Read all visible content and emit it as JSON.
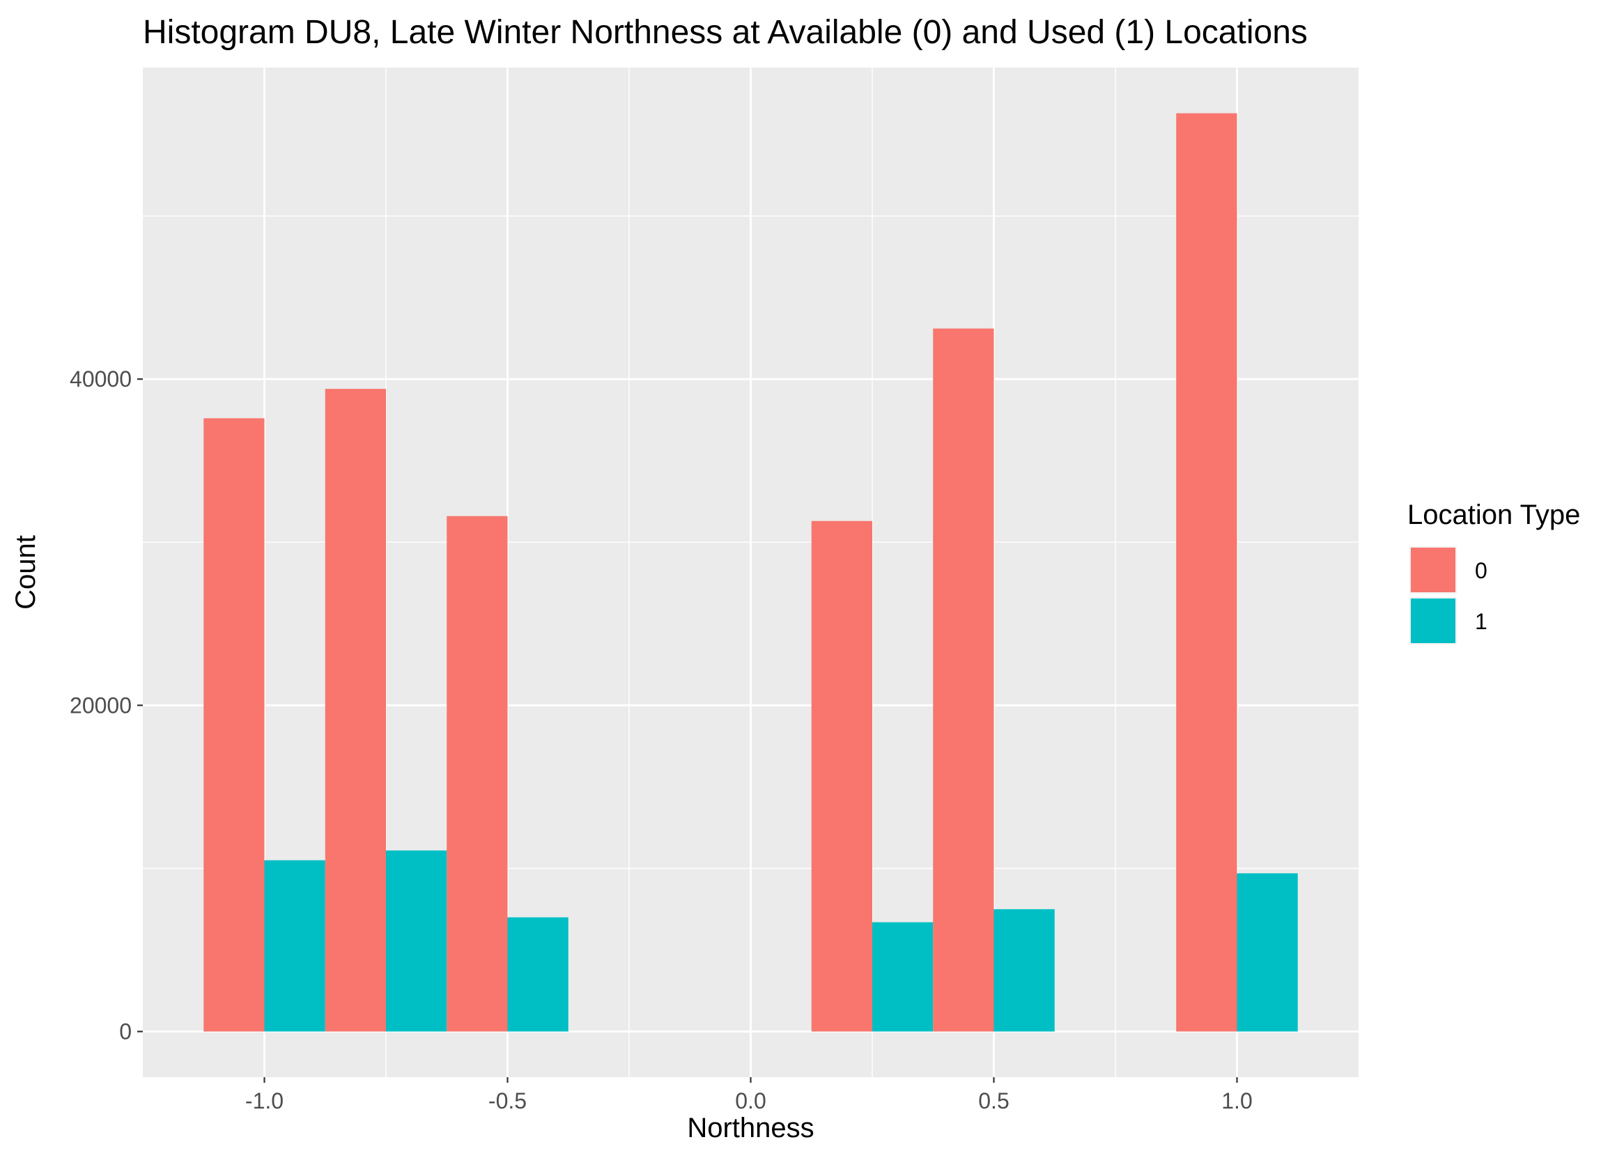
{
  "chart_data": {
    "type": "bar",
    "title": "Histogram DU8, Late Winter Northness at Available (0) and Used (1) Locations",
    "xlabel": "Northness",
    "ylabel": "Count",
    "x": [
      -1.0,
      -0.75,
      -0.5,
      0.25,
      0.5,
      1.0
    ],
    "series": [
      {
        "name": "0",
        "color": "#F8766D",
        "values": [
          37600,
          39400,
          31600,
          31300,
          43100,
          56300
        ]
      },
      {
        "name": "1",
        "color": "#00BFC4",
        "values": [
          10500,
          11100,
          7000,
          6700,
          7500,
          9700
        ]
      }
    ],
    "xlim": [
      -1.25,
      1.25
    ],
    "ylim": [
      -2800,
      59100
    ],
    "x_ticks": [
      {
        "value": -1.0,
        "label": "-1.0"
      },
      {
        "value": -0.5,
        "label": "-0.5"
      },
      {
        "value": 0.0,
        "label": "0.0"
      },
      {
        "value": 0.5,
        "label": "0.5"
      },
      {
        "value": 1.0,
        "label": "1.0"
      }
    ],
    "x_minor_ticks": [
      -0.75,
      -0.25,
      0.25,
      0.75
    ],
    "y_ticks": [
      {
        "value": 0,
        "label": "0"
      },
      {
        "value": 20000,
        "label": "20000"
      },
      {
        "value": 40000,
        "label": "40000"
      }
    ],
    "y_minor_ticks": [
      10000,
      30000,
      50000
    ],
    "grid": true,
    "panel_background": "#EBEBEB",
    "grid_color": "#FFFFFF",
    "legend": {
      "title": "Location Type",
      "position": "right",
      "entries": [
        {
          "label": "0",
          "color": "#F8766D"
        },
        {
          "label": "1",
          "color": "#00BFC4"
        }
      ]
    }
  }
}
